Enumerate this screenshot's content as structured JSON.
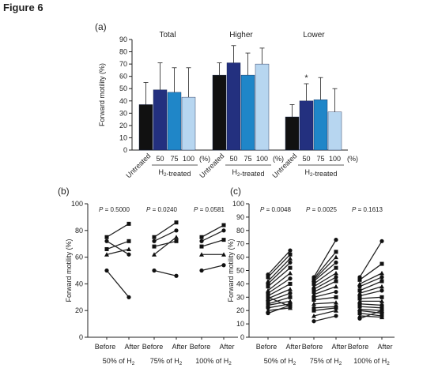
{
  "figure_title": "Figure 6",
  "colors": {
    "untreated": "#111111",
    "h2_50": "#23307f",
    "h2_75": "#1f86c8",
    "h2_100": "#b7d6f0",
    "axis": "#222222"
  },
  "chart_data": [
    {
      "panel": "(a)",
      "type": "bar",
      "ylabel": "Forward motility (%)",
      "ylim": [
        0,
        90
      ],
      "yticks": [
        0,
        10,
        20,
        30,
        40,
        50,
        60,
        70,
        80,
        90
      ],
      "treatment_label": "H2-treated",
      "x_unit": "(%)",
      "categories": [
        "Untreated",
        "50",
        "75",
        "100"
      ],
      "groups": [
        {
          "name": "Total",
          "values": [
            37,
            49,
            47,
            43
          ],
          "errors": [
            18,
            22,
            20,
            24
          ],
          "significance": [
            "",
            "",
            "",
            ""
          ]
        },
        {
          "name": "Higher",
          "values": [
            61,
            71,
            61,
            70
          ],
          "errors": [
            10,
            14,
            18,
            13
          ],
          "significance": [
            "",
            "",
            "",
            ""
          ]
        },
        {
          "name": "Lower",
          "values": [
            27,
            40,
            41,
            31
          ],
          "errors": [
            10,
            14,
            18,
            19
          ],
          "significance": [
            "",
            "*",
            "",
            ""
          ]
        }
      ]
    },
    {
      "panel": "(b)",
      "type": "line",
      "ylabel": "Forward motility (%)",
      "ylim": [
        0,
        100
      ],
      "yticks": [
        0,
        20,
        40,
        60,
        80,
        100
      ],
      "x": [
        "Before",
        "After"
      ],
      "groups": [
        {
          "name": "50% of H2",
          "p_label": "P",
          "p_value": "= 0.5000",
          "pairs": [
            [
              75,
              85
            ],
            [
              72,
              62
            ],
            [
              66,
              72
            ],
            [
              62,
              66
            ],
            [
              50,
              30
            ]
          ]
        },
        {
          "name": "75% of H2",
          "p_label": "P",
          "p_value": "= 0.0240",
          "pairs": [
            [
              75,
              86
            ],
            [
              72,
              80
            ],
            [
              68,
              72
            ],
            [
              62,
              75
            ],
            [
              50,
              46
            ]
          ]
        },
        {
          "name": "100% of H2",
          "p_label": "P",
          "p_value": "= 0.0581",
          "pairs": [
            [
              75,
              84
            ],
            [
              72,
              80
            ],
            [
              68,
              73
            ],
            [
              62,
              62
            ],
            [
              50,
              54
            ]
          ]
        }
      ]
    },
    {
      "panel": "(c)",
      "type": "line",
      "ylabel": "Forward motility (%)",
      "ylim": [
        0,
        100
      ],
      "yticks": [
        0,
        10,
        20,
        30,
        40,
        50,
        60,
        70,
        80,
        90,
        100
      ],
      "x": [
        "Before",
        "After"
      ],
      "groups": [
        {
          "name": "50% of H2",
          "p_label": "P",
          "p_value": "= 0.0048",
          "pairs": [
            [
              47,
              65
            ],
            [
              45,
              62
            ],
            [
              42,
              59
            ],
            [
              40,
              56
            ],
            [
              38,
              52
            ],
            [
              35,
              48
            ],
            [
              33,
              44
            ],
            [
              31,
              40
            ],
            [
              29,
              36
            ],
            [
              27,
              33
            ],
            [
              25,
              30
            ],
            [
              24,
              27
            ],
            [
              22,
              25
            ],
            [
              30,
              23
            ],
            [
              20,
              22
            ],
            [
              18,
              24
            ]
          ]
        },
        {
          "name": "75% of H2",
          "p_label": "P",
          "p_value": "= 0.0025",
          "pairs": [
            [
              45,
              73
            ],
            [
              44,
              64
            ],
            [
              43,
              60
            ],
            [
              42,
              56
            ],
            [
              40,
              52
            ],
            [
              38,
              48
            ],
            [
              36,
              45
            ],
            [
              34,
              42
            ],
            [
              32,
              38
            ],
            [
              30,
              34
            ],
            [
              28,
              30
            ],
            [
              25,
              26
            ],
            [
              22,
              23
            ],
            [
              20,
              22
            ],
            [
              16,
              20
            ],
            [
              12,
              16
            ]
          ]
        },
        {
          "name": "100% of H2",
          "p_label": "P",
          "p_value": "= 0.1613",
          "pairs": [
            [
              45,
              72
            ],
            [
              43,
              55
            ],
            [
              40,
              48
            ],
            [
              38,
              45
            ],
            [
              35,
              42
            ],
            [
              33,
              38
            ],
            [
              31,
              35
            ],
            [
              29,
              30
            ],
            [
              27,
              27
            ],
            [
              25,
              24
            ],
            [
              23,
              22
            ],
            [
              21,
              20
            ],
            [
              20,
              18
            ],
            [
              18,
              16
            ],
            [
              16,
              15
            ],
            [
              14,
              20
            ]
          ]
        }
      ]
    }
  ]
}
